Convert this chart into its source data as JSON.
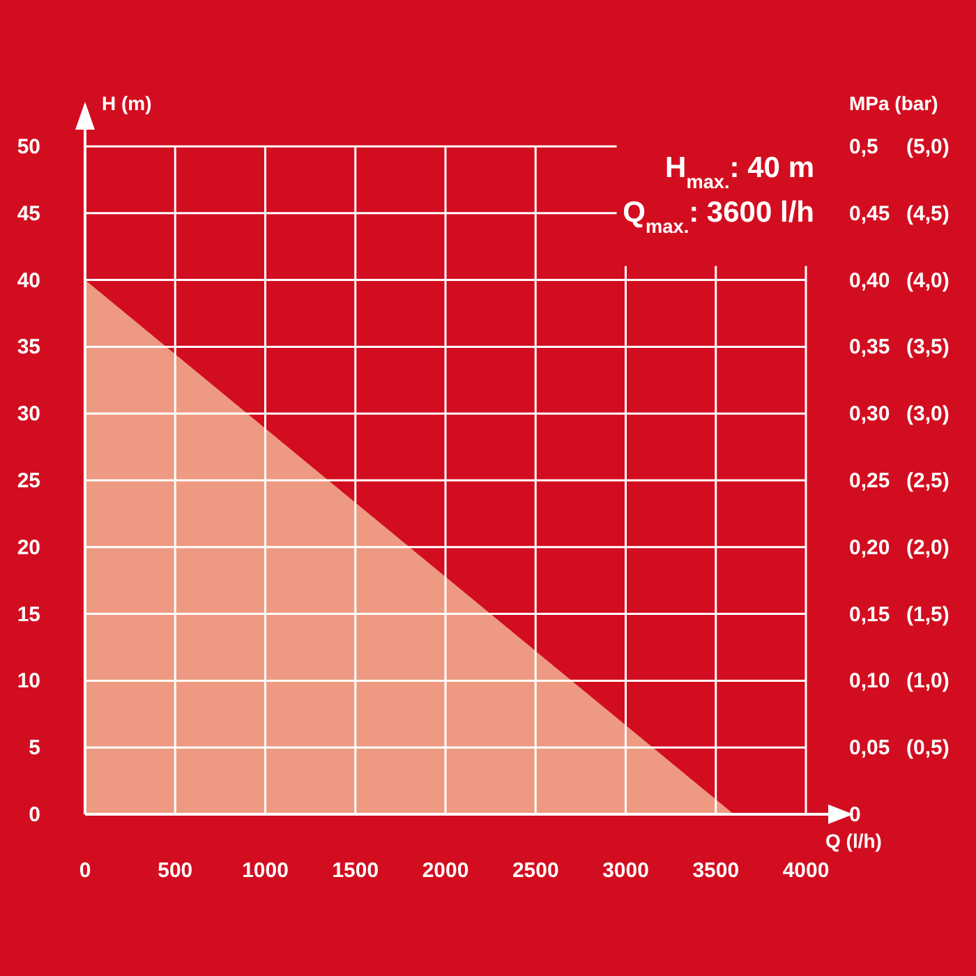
{
  "chart_data": {
    "type": "area",
    "xlabel": "Q (l/h)",
    "ylabel": "H (m)",
    "y2label": "MPa (bar)",
    "annotations": [
      "H$_{max.}$: 40 m",
      "Q$_{max.}$: 3600 l/h"
    ],
    "series": [
      {
        "color": "#ee9a82",
        "x": [
          0,
          3600
        ],
        "values": [
          40,
          0
        ]
      }
    ],
    "xlim": [
      0,
      4000
    ],
    "xticks": [
      0,
      500,
      1000,
      1500,
      2000,
      2500,
      3000,
      3500,
      4000
    ],
    "ylim": [
      0,
      50
    ],
    "yticks": [
      0,
      5,
      10,
      15,
      20,
      25,
      30,
      35,
      40,
      45,
      50
    ],
    "y2lim": [
      0,
      0.5
    ],
    "y2ticks": [
      {
        "value": 0,
        "label": "0"
      },
      {
        "value": 0.05,
        "label": "0,05"
      },
      {
        "value": 0.1,
        "label": "0,10"
      },
      {
        "value": 0.15,
        "label": "0,15"
      },
      {
        "value": 0.2,
        "label": "0,20"
      },
      {
        "value": 0.25,
        "label": "0,25"
      },
      {
        "value": 0.3,
        "label": "0,30"
      },
      {
        "value": 0.35,
        "label": "0,35"
      },
      {
        "value": 0.4,
        "label": "0,40"
      },
      {
        "value": 0.45,
        "label": "0,45"
      },
      {
        "value": 0.5,
        "label": "0,5"
      }
    ],
    "y3lim": [
      0,
      5
    ],
    "y3ticks": [
      {
        "value": 0.5,
        "label": "(0,5)"
      },
      {
        "value": 1,
        "label": "(1,0)"
      },
      {
        "value": 1.5,
        "label": "(1,5)"
      },
      {
        "value": 2,
        "label": "(2,0)"
      },
      {
        "value": 2.5,
        "label": "(2,5)"
      },
      {
        "value": 3,
        "label": "(3,0)"
      },
      {
        "value": 3.5,
        "label": "(3,5)"
      },
      {
        "value": 4,
        "label": "(4,0)"
      },
      {
        "value": 4.5,
        "label": "(4,5)"
      },
      {
        "value": 5,
        "label": "(5,0)"
      }
    ],
    "grid": true
  }
}
